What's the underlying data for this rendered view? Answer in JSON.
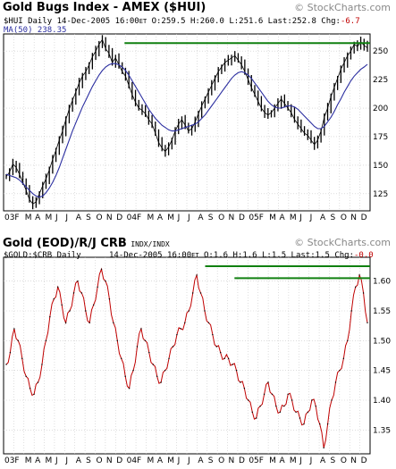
{
  "top": {
    "title": "Gold Bugs Index - AMEX ($HUI)",
    "watermark": "© StockCharts.com",
    "symbol": "$HUI Daily",
    "date": "14-Dec-2005 16:00",
    "tz": "ET",
    "open": "O:259.5",
    "high": "H:260.0",
    "low": "L:251.6",
    "last": "Last:252.8",
    "chg_label": "Chg:",
    "chg": "-6.7",
    "ma_label": "MA(50) 238.35"
  },
  "bottom": {
    "title": "Gold (EOD)/R/J CRB",
    "title_suffix": "INDX/INDX",
    "watermark": "© StockCharts.com",
    "symbol": "$GOLD:$CRB Daily",
    "date": "14-Dec-2005 16:00",
    "tz": "ET",
    "open": "O:1.6",
    "high": "H:1.6",
    "low": "L:1.5",
    "last": "Last:1.5",
    "chg_label": "Chg:",
    "chg": "-0.0"
  },
  "colors": {
    "price": "#000000",
    "ma": "#2b2ea0",
    "line": "#c00000",
    "resistance": "#108010",
    "grid": "#c8c8c8"
  },
  "chart_data": [
    {
      "type": "line",
      "style": "ohlc-bars",
      "title": "Gold Bugs Index - AMEX ($HUI)",
      "x_tick_labels": [
        "03",
        "F",
        "M",
        "A",
        "M",
        "J",
        "J",
        "A",
        "S",
        "O",
        "N",
        "D",
        "04",
        "F",
        "M",
        "A",
        "M",
        "J",
        "J",
        "A",
        "S",
        "O",
        "N",
        "D",
        "05",
        "F",
        "M",
        "A",
        "M",
        "J",
        "J",
        "A",
        "S",
        "O",
        "N",
        "D"
      ],
      "ylim": [
        110,
        265
      ],
      "y_ticks": [
        125,
        150,
        175,
        200,
        225,
        250
      ],
      "grid": true,
      "series": [
        {
          "name": "$HUI Daily",
          "values": [
            140,
            144,
            151,
            148,
            142,
            135,
            128,
            120,
            116,
            118,
            125,
            132,
            138,
            146,
            155,
            163,
            172,
            180,
            190,
            199,
            207,
            214,
            222,
            228,
            232,
            238,
            245,
            250,
            256,
            260,
            252,
            248,
            240,
            244,
            238,
            232,
            228,
            220,
            212,
            205,
            200,
            198,
            195,
            190,
            186,
            178,
            170,
            165,
            162,
            166,
            172,
            180,
            186,
            190,
            185,
            180,
            182,
            188,
            195,
            202,
            208,
            214,
            220,
            226,
            232,
            236,
            240,
            242,
            244,
            246,
            242,
            238,
            232,
            225,
            218,
            212,
            206,
            200,
            196,
            194,
            196,
            200,
            204,
            208,
            204,
            200,
            196,
            190,
            186,
            182,
            178,
            176,
            172,
            168,
            172,
            180,
            192,
            200,
            210,
            218,
            226,
            234,
            240,
            246,
            250,
            256,
            254,
            258,
            255,
            252.8
          ]
        },
        {
          "name": "MA(50)",
          "values": [
            142,
            141,
            140,
            139,
            137,
            134,
            131,
            128,
            125,
            123,
            122,
            123,
            126,
            130,
            135,
            141,
            148,
            156,
            164,
            172,
            180,
            187,
            194,
            201,
            207,
            213,
            219,
            224,
            229,
            233,
            236,
            238,
            239,
            239,
            238,
            236,
            233,
            229,
            224,
            219,
            214,
            209,
            204,
            199,
            195,
            191,
            188,
            185,
            183,
            181,
            180,
            180,
            181,
            182,
            183,
            184,
            185,
            186,
            188,
            191,
            194,
            198,
            202,
            206,
            210,
            214,
            218,
            222,
            226,
            229,
            231,
            232,
            231,
            229,
            226,
            222,
            218,
            214,
            210,
            206,
            203,
            201,
            200,
            200,
            201,
            202,
            202,
            201,
            199,
            196,
            193,
            190,
            187,
            184,
            182,
            182,
            184,
            188,
            192,
            197,
            203,
            208,
            214,
            219,
            224,
            228,
            231,
            234,
            236,
            238.35
          ]
        }
      ],
      "annotations": [
        {
          "type": "horizontal-line",
          "y": 257
        }
      ]
    },
    {
      "type": "line",
      "title": "Gold (EOD)/R/J CRB",
      "x_tick_labels": [
        "03",
        "F",
        "M",
        "A",
        "M",
        "J",
        "J",
        "A",
        "S",
        "O",
        "N",
        "D",
        "04",
        "F",
        "M",
        "A",
        "M",
        "J",
        "J",
        "A",
        "S",
        "O",
        "N",
        "D",
        "05",
        "F",
        "M",
        "A",
        "M",
        "J",
        "J",
        "A",
        "S",
        "O",
        "N",
        "D"
      ],
      "ylim": [
        1.31,
        1.64
      ],
      "y_ticks": [
        1.35,
        1.4,
        1.45,
        1.5,
        1.55,
        1.6
      ],
      "grid": true,
      "series": [
        {
          "name": "$GOLD:$CRB Daily",
          "values": [
            1.46,
            1.48,
            1.52,
            1.5,
            1.47,
            1.44,
            1.42,
            1.41,
            1.43,
            1.46,
            1.5,
            1.54,
            1.57,
            1.59,
            1.56,
            1.53,
            1.55,
            1.58,
            1.6,
            1.58,
            1.55,
            1.53,
            1.56,
            1.59,
            1.62,
            1.6,
            1.57,
            1.53,
            1.5,
            1.47,
            1.44,
            1.42,
            1.45,
            1.49,
            1.52,
            1.5,
            1.48,
            1.46,
            1.44,
            1.43,
            1.45,
            1.47,
            1.49,
            1.51,
            1.52,
            1.53,
            1.55,
            1.58,
            1.61,
            1.58,
            1.55,
            1.53,
            1.51,
            1.49,
            1.48,
            1.47,
            1.47,
            1.46,
            1.45,
            1.43,
            1.42,
            1.4,
            1.38,
            1.37,
            1.39,
            1.41,
            1.43,
            1.41,
            1.39,
            1.38,
            1.39,
            1.41,
            1.4,
            1.38,
            1.37,
            1.36,
            1.38,
            1.4,
            1.39,
            1.36,
            1.32,
            1.36,
            1.4,
            1.43,
            1.45,
            1.47,
            1.5,
            1.55,
            1.59,
            1.61,
            1.58,
            1.53
          ]
        }
      ],
      "annotations": [
        {
          "type": "horizontal-line",
          "y": 1.605
        },
        {
          "type": "horizontal-line",
          "y": 1.625
        }
      ]
    }
  ]
}
